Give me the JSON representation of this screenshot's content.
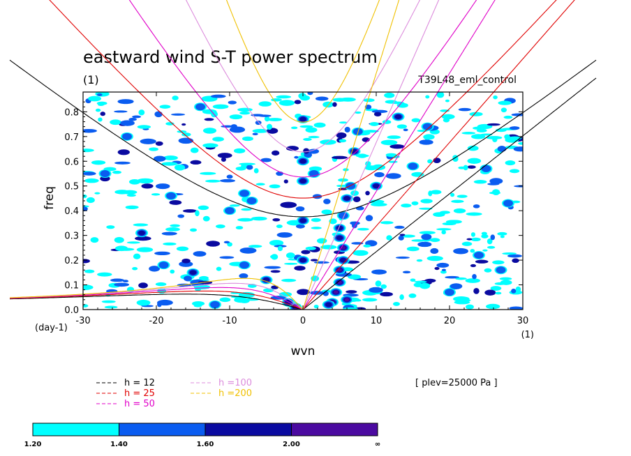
{
  "chart_data": {
    "type": "heatmap",
    "title": "eastward wind S-T power spectrum",
    "units": "(1)",
    "experiment": "T39L48_eml_control",
    "xlabel": "wvn",
    "xunits": "(1)",
    "ylabel": "freq",
    "yunits": "(day-1)",
    "xlim": [
      -30,
      30
    ],
    "ylim": [
      0,
      0.88
    ],
    "xticks": [
      "-30",
      "-20",
      "-10",
      "0",
      "10",
      "20",
      "30"
    ],
    "yticks": [
      "0.0",
      "0.1",
      "0.2",
      "0.3",
      "0.4",
      "0.5",
      "0.6",
      "0.7",
      "0.8"
    ],
    "level_annotation": "[ plev=25000 Pa ]",
    "colorbar": {
      "labels": [
        "1.20",
        "1.40",
        "1.60",
        "2.00",
        "∞"
      ],
      "colors": [
        "#00ffff",
        "#0a5cf0",
        "#0a0aa0",
        "#4b0aa0"
      ]
    },
    "legend": [
      {
        "label": "h = 12",
        "color": "#000000"
      },
      {
        "label": "h = 25",
        "color": "#e00000"
      },
      {
        "label": "h = 50",
        "color": "#e000c8"
      },
      {
        "label": "h =100",
        "color": "#dc8cdc"
      },
      {
        "label": "h =200",
        "color": "#f0c000"
      }
    ],
    "dispersion_curves": [
      {
        "h": 12,
        "color": "#000000"
      },
      {
        "h": 25,
        "color": "#e00000"
      },
      {
        "h": 50,
        "color": "#e000c8"
      },
      {
        "h": 100,
        "color": "#dc8cdc"
      },
      {
        "h": 200,
        "color": "#f0c000"
      }
    ],
    "power_blobs": [
      {
        "x": 4,
        "y": 0.03,
        "level": 4
      },
      {
        "x": 4.5,
        "y": 0.07,
        "level": 4
      },
      {
        "x": 5,
        "y": 0.11,
        "level": 4
      },
      {
        "x": 5,
        "y": 0.16,
        "level": 4
      },
      {
        "x": 5.5,
        "y": 0.2,
        "level": 3
      },
      {
        "x": 5.5,
        "y": 0.25,
        "level": 4
      },
      {
        "x": 5,
        "y": 0.29,
        "level": 3
      },
      {
        "x": 5,
        "y": 0.33,
        "level": 3
      },
      {
        "x": 5.5,
        "y": 0.38,
        "level": 2
      },
      {
        "x": 6,
        "y": 0.45,
        "level": 3
      },
      {
        "x": 6.5,
        "y": 0.5,
        "level": 2
      },
      {
        "x": 7,
        "y": 0.64,
        "level": 3
      },
      {
        "x": 7.5,
        "y": 0.72,
        "level": 2
      },
      {
        "x": 3.5,
        "y": 0.02,
        "level": 3
      },
      {
        "x": 6,
        "y": 0.04,
        "level": 4
      },
      {
        "x": -1,
        "y": 0.01,
        "level": 4
      },
      {
        "x": -2,
        "y": 0.03,
        "level": 3
      },
      {
        "x": 0,
        "y": 0.77,
        "level": 3
      },
      {
        "x": 0,
        "y": 0.6,
        "level": 3
      },
      {
        "x": 0,
        "y": 0.52,
        "level": 3
      },
      {
        "x": 0,
        "y": 0.36,
        "level": 3
      },
      {
        "x": 0,
        "y": 0.2,
        "level": 3
      },
      {
        "x": 1.5,
        "y": 0.55,
        "level": 2
      },
      {
        "x": -5,
        "y": 0.12,
        "level": 3
      },
      {
        "x": -8,
        "y": 0.18,
        "level": 2
      },
      {
        "x": -12,
        "y": 0.02,
        "level": 2
      },
      {
        "x": -15,
        "y": 0.15,
        "level": 3
      },
      {
        "x": -19,
        "y": 0.18,
        "level": 2
      },
      {
        "x": -22,
        "y": 0.31,
        "level": 3
      },
      {
        "x": -18,
        "y": 0.46,
        "level": 2
      },
      {
        "x": -8,
        "y": 0.47,
        "level": 2
      },
      {
        "x": -7,
        "y": 0.44,
        "level": 2
      },
      {
        "x": -10,
        "y": 0.4,
        "level": 2
      },
      {
        "x": 10,
        "y": 0.5,
        "level": 3
      },
      {
        "x": 13,
        "y": 0.78,
        "level": 3
      },
      {
        "x": 15,
        "y": 0.58,
        "level": 2
      },
      {
        "x": 17,
        "y": 0.74,
        "level": 2
      },
      {
        "x": 20,
        "y": 0.07,
        "level": 2
      },
      {
        "x": 24,
        "y": 0.22,
        "level": 2
      },
      {
        "x": 27,
        "y": 0.16,
        "level": 2
      },
      {
        "x": 25,
        "y": 0.57,
        "level": 2
      },
      {
        "x": 28,
        "y": 0.43,
        "level": 2
      },
      {
        "x": -27,
        "y": 0.55,
        "level": 2
      },
      {
        "x": -24,
        "y": 0.7,
        "level": 2
      },
      {
        "x": -14,
        "y": 0.82,
        "level": 2
      }
    ]
  }
}
